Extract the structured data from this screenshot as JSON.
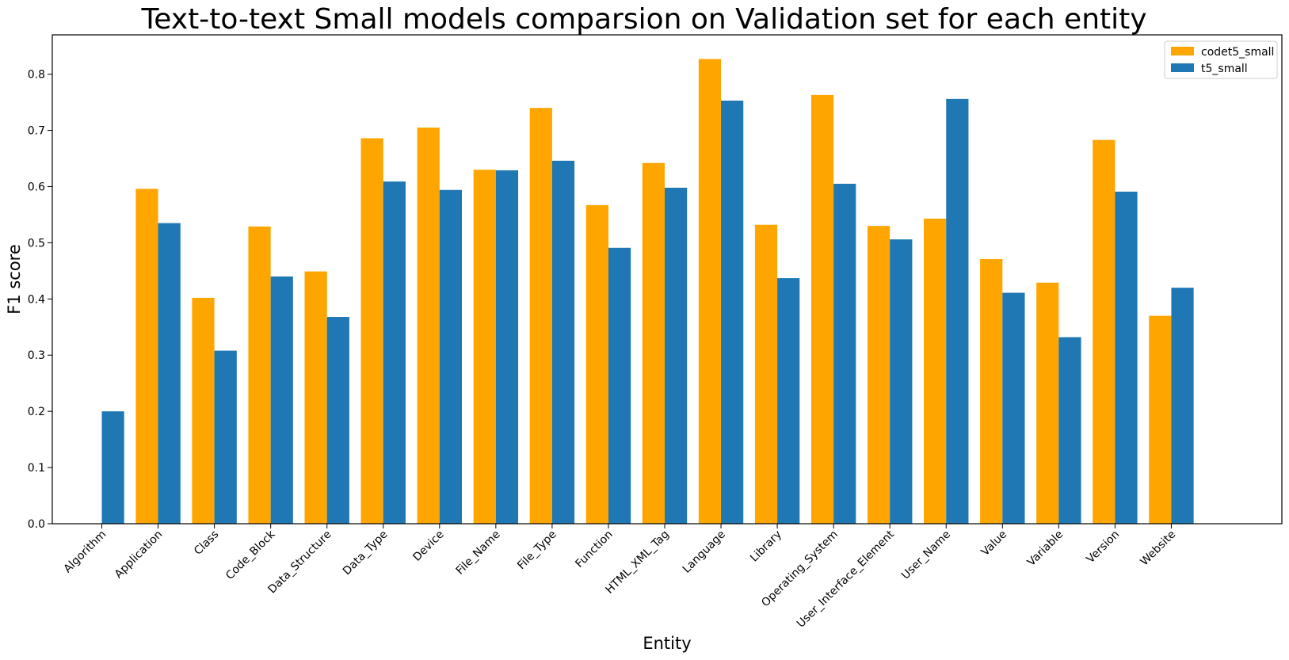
{
  "chart_data": {
    "type": "bar",
    "title": "Text-to-text Small models comparsion on Validation set for each entity",
    "xlabel": "Entity",
    "ylabel": "F1 score",
    "ylim": [
      0,
      0.87
    ],
    "yticks": [
      0.0,
      0.1,
      0.2,
      0.3,
      0.4,
      0.5,
      0.6,
      0.7,
      0.8
    ],
    "ytick_labels": [
      "0.0",
      "0.1",
      "0.2",
      "0.3",
      "0.4",
      "0.5",
      "0.6",
      "0.7",
      "0.8"
    ],
    "grid": false,
    "legend_position": "top-right",
    "categories": [
      "Algorithm",
      "Application",
      "Class",
      "Code_Block",
      "Data_Structure",
      "Data_Type",
      "Device",
      "File_Name",
      "File_Type",
      "Function",
      "HTML_XML_Tag",
      "Language",
      "Library",
      "Operating_System",
      "User_Interface_Element",
      "User_Name",
      "Value",
      "Variable",
      "Version",
      "Website"
    ],
    "series": [
      {
        "name": "codet5_small",
        "color": "#ffa500",
        "values": [
          0.0,
          0.596,
          0.402,
          0.529,
          0.449,
          0.686,
          0.705,
          0.63,
          0.74,
          0.567,
          0.642,
          0.827,
          0.532,
          0.763,
          0.53,
          0.543,
          0.471,
          0.429,
          0.683,
          0.37
        ]
      },
      {
        "name": "t5_small",
        "color": "#1f77b4",
        "values": [
          0.2,
          0.535,
          0.308,
          0.44,
          0.368,
          0.609,
          0.594,
          0.629,
          0.646,
          0.491,
          0.598,
          0.753,
          0.437,
          0.605,
          0.506,
          0.756,
          0.411,
          0.332,
          0.591,
          0.42
        ]
      }
    ]
  }
}
